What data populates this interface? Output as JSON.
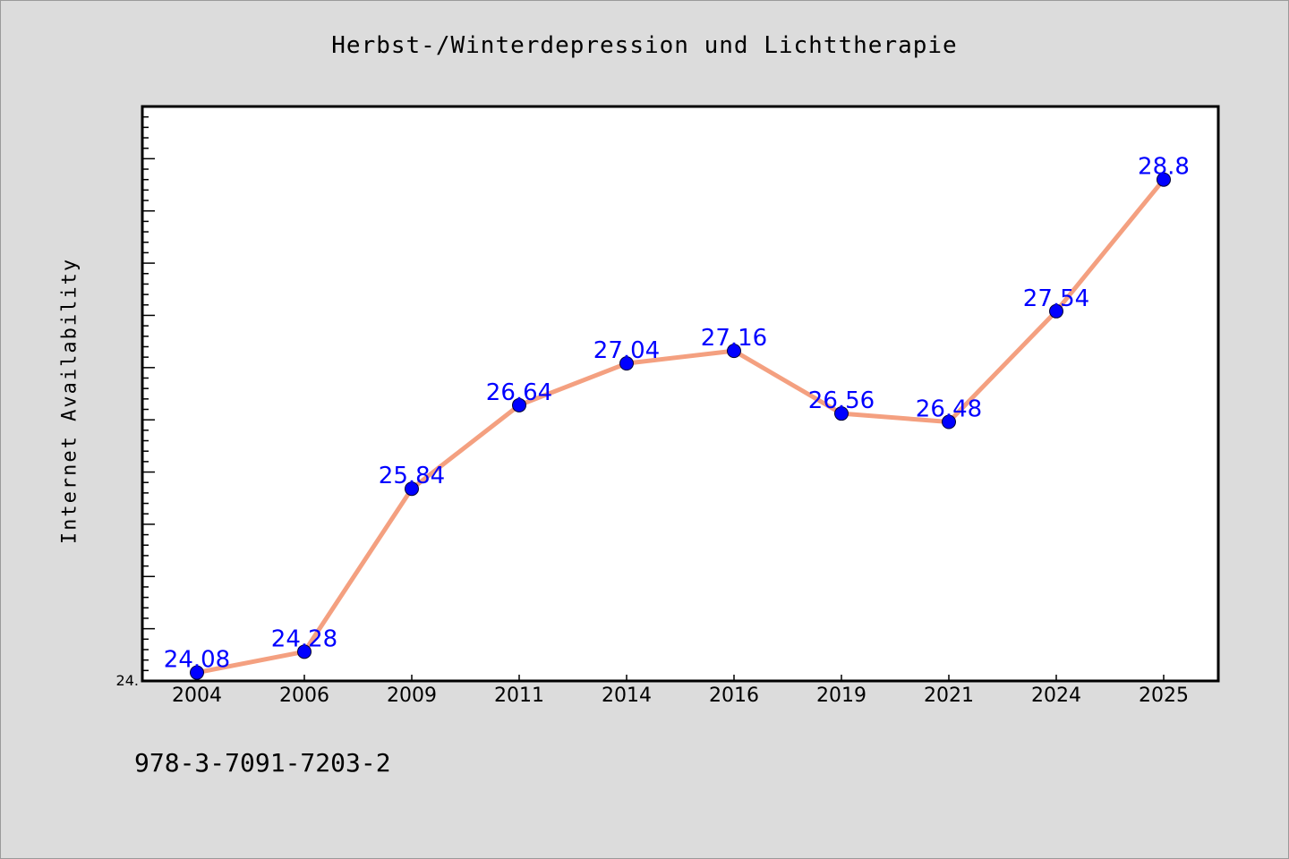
{
  "chart_data": {
    "type": "line",
    "title": "Herbst-/Winterdepression und Lichttherapie",
    "xlabel": "",
    "ylabel": "Internet Availability",
    "categories": [
      "2004",
      "2006",
      "2009",
      "2011",
      "2014",
      "2016",
      "2019",
      "2021",
      "2024",
      "2025"
    ],
    "series": [
      {
        "values": [
          24.08,
          24.28,
          25.84,
          26.64,
          27.04,
          27.16,
          26.56,
          26.48,
          27.54,
          28.8
        ],
        "data_labels": [
          "24.08",
          "24.28",
          "25.84",
          "26.64",
          "27.04",
          "27.16",
          "26.56",
          "26.48",
          "27.54",
          "28.8"
        ]
      }
    ],
    "y_tick_labels": [
      "24."
    ],
    "ylim": [
      24.0,
      29.5
    ],
    "grid": false,
    "legend": "none",
    "colors": {
      "line": "#f4a080",
      "marker": "#0000ff",
      "data_label": "#0000ff",
      "background": "#dcdcdc",
      "plot_area": "#ffffff"
    }
  },
  "footer_text": "978-3-7091-7203-2"
}
